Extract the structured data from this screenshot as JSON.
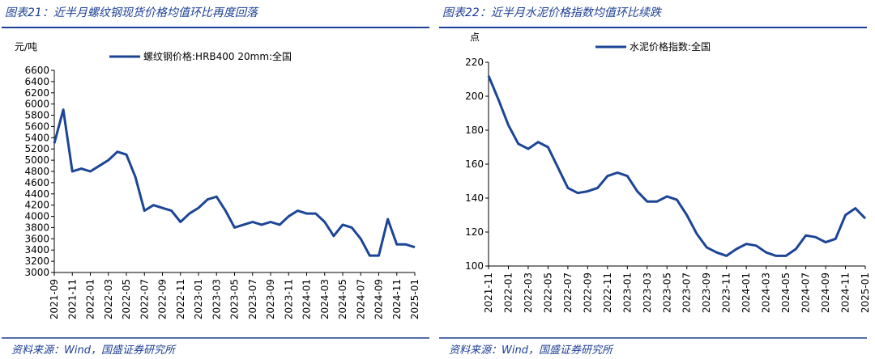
{
  "chart_data": [
    {
      "type": "line",
      "title": "图表21：近半月螺纹钢现货价格均值环比再度回落",
      "y_label": "元/吨",
      "source": "资料来源：Wind，国盛证券研究所",
      "x": [
        "2021-09",
        null,
        "2021-11",
        null,
        "2022-01",
        null,
        "2022-03",
        null,
        "2022-05",
        null,
        "2022-07",
        null,
        "2022-09",
        null,
        "2022-11",
        null,
        "2023-01",
        null,
        "2023-03",
        null,
        "2023-05",
        null,
        "2023-07",
        null,
        "2023-09",
        null,
        "2023-11",
        null,
        "2024-01",
        null,
        "2024-03",
        null,
        "2024-05",
        null,
        "2024-07",
        null,
        "2024-09",
        null,
        "2024-11",
        null,
        "2025-01"
      ],
      "series": [
        {
          "name": "螺纹钢价格:HRB400 20mm:全国",
          "color": "#1c4596",
          "values": [
            5300,
            5900,
            4800,
            4850,
            4800,
            4900,
            5000,
            5150,
            5100,
            4700,
            4100,
            4200,
            4150,
            4100,
            3900,
            4050,
            4150,
            4300,
            4350,
            4100,
            3800,
            3850,
            3900,
            3850,
            3900,
            3850,
            4000,
            4100,
            4050,
            4050,
            3900,
            3650,
            3850,
            3800,
            3600,
            3300,
            3300,
            3950,
            3500,
            3500,
            3450
          ]
        }
      ],
      "ylim": [
        3000,
        6600
      ],
      "yticks": [
        3000,
        3200,
        3400,
        3600,
        3800,
        4000,
        4200,
        4400,
        4600,
        4800,
        5000,
        5200,
        5400,
        5600,
        5800,
        6000,
        6200,
        6400,
        6600
      ]
    },
    {
      "type": "line",
      "title": "图表22：近半月水泥价格指数均值环比续跌",
      "y_label": "点",
      "source": "资料来源：Wind，国盛证券研究所",
      "x": [
        "2021-11",
        null,
        "2022-01",
        null,
        "2022-03",
        null,
        "2022-05",
        null,
        "2022-07",
        null,
        "2022-09",
        null,
        "2022-11",
        null,
        "2023-01",
        null,
        "2023-03",
        null,
        "2023-05",
        null,
        "2023-07",
        null,
        "2023-09",
        null,
        "2023-11",
        null,
        "2024-01",
        null,
        "2024-03",
        null,
        "2024-05",
        null,
        "2024-07",
        null,
        "2024-09",
        null,
        "2024-11",
        null,
        "2025-01"
      ],
      "series": [
        {
          "name": "水泥价格指数:全国",
          "color": "#1c4596",
          "values": [
            212,
            198,
            183,
            172,
            169,
            173,
            170,
            158,
            146,
            143,
            144,
            146,
            153,
            155,
            153,
            144,
            138,
            138,
            141,
            139,
            130,
            119,
            111,
            108,
            106,
            110,
            113,
            112,
            108,
            106,
            106,
            110,
            118,
            117,
            114,
            116,
            130,
            134,
            128
          ]
        }
      ],
      "ylim": [
        100,
        220
      ],
      "yticks": [
        100,
        120,
        140,
        160,
        180,
        200,
        220
      ]
    }
  ]
}
